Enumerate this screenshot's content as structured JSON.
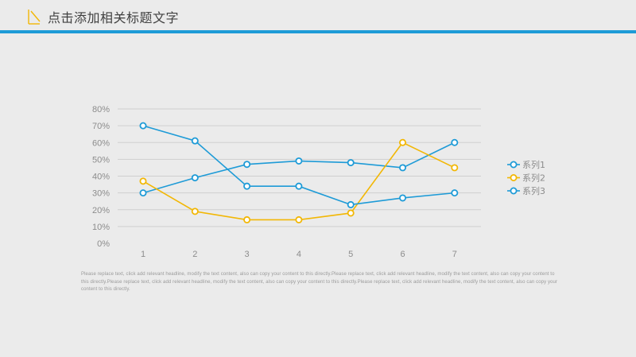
{
  "header": {
    "title": "点击添加相关标题文字"
  },
  "colors": {
    "accent": "#1e9bd7",
    "series1": "#1e9bd7",
    "series2": "#f2b705",
    "series3": "#1e9bd7",
    "logo": "#f2b705"
  },
  "chart_data": {
    "type": "line",
    "x": [
      1,
      2,
      3,
      4,
      5,
      6,
      7
    ],
    "ylim": [
      0,
      0.8
    ],
    "yticks": [
      "0%",
      "10%",
      "20%",
      "30%",
      "40%",
      "50%",
      "60%",
      "70%",
      "80%"
    ],
    "xticks": [
      "1",
      "2",
      "3",
      "4",
      "5",
      "6",
      "7"
    ],
    "grid": "horizontal",
    "legend_position": "right",
    "series": [
      {
        "name": "系列1",
        "color": "#1e9bd7",
        "values": [
          0.3,
          0.39,
          0.47,
          0.49,
          0.48,
          0.45,
          0.6
        ]
      },
      {
        "name": "系列2",
        "color": "#f2b705",
        "values": [
          0.37,
          0.19,
          0.14,
          0.14,
          0.18,
          0.6,
          0.45
        ]
      },
      {
        "name": "系列3",
        "color": "#1e9bd7",
        "values": [
          0.7,
          0.61,
          0.34,
          0.34,
          0.23,
          0.27,
          0.3
        ]
      }
    ]
  },
  "body_text": "Please replace text, click add relevant headline, modify the text content, also can copy your content to this directly.Please replace text, click add relevant headline, modify the text content, also can copy your content to this directly.Please replace text, click add relevant headline, modify the text content, also can copy your content to this directly.Please replace text, click add relevant headline, modify the text content, also can copy your content to this directly."
}
